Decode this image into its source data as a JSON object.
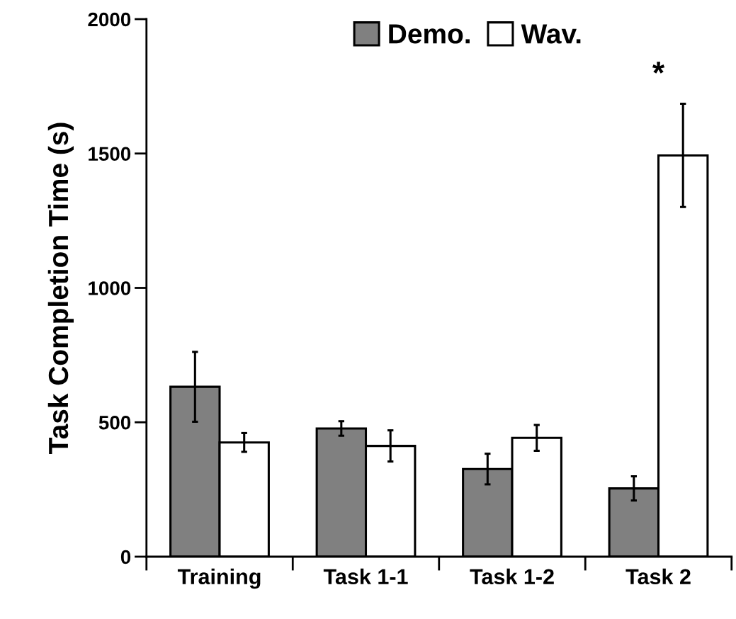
{
  "chart_data": {
    "type": "bar",
    "ylabel": "Task Completion Time (s)",
    "categories": [
      "Training",
      "Task 1-1",
      "Task 1-2",
      "Task 2"
    ],
    "series": [
      {
        "name": "Demo.",
        "color": "#808080",
        "values": [
          632,
          477,
          326,
          254
        ],
        "errors": [
          130,
          27,
          57,
          45
        ]
      },
      {
        "name": "Wav.",
        "color": "#ffffff",
        "values": [
          425,
          412,
          442,
          1493
        ],
        "errors": [
          35,
          58,
          48,
          192
        ]
      }
    ],
    "ylim": [
      0,
      2000
    ],
    "yticks": [
      0,
      500,
      1000,
      1500,
      2000
    ],
    "annotations": [
      "*"
    ],
    "grid": false,
    "legend": "top"
  }
}
